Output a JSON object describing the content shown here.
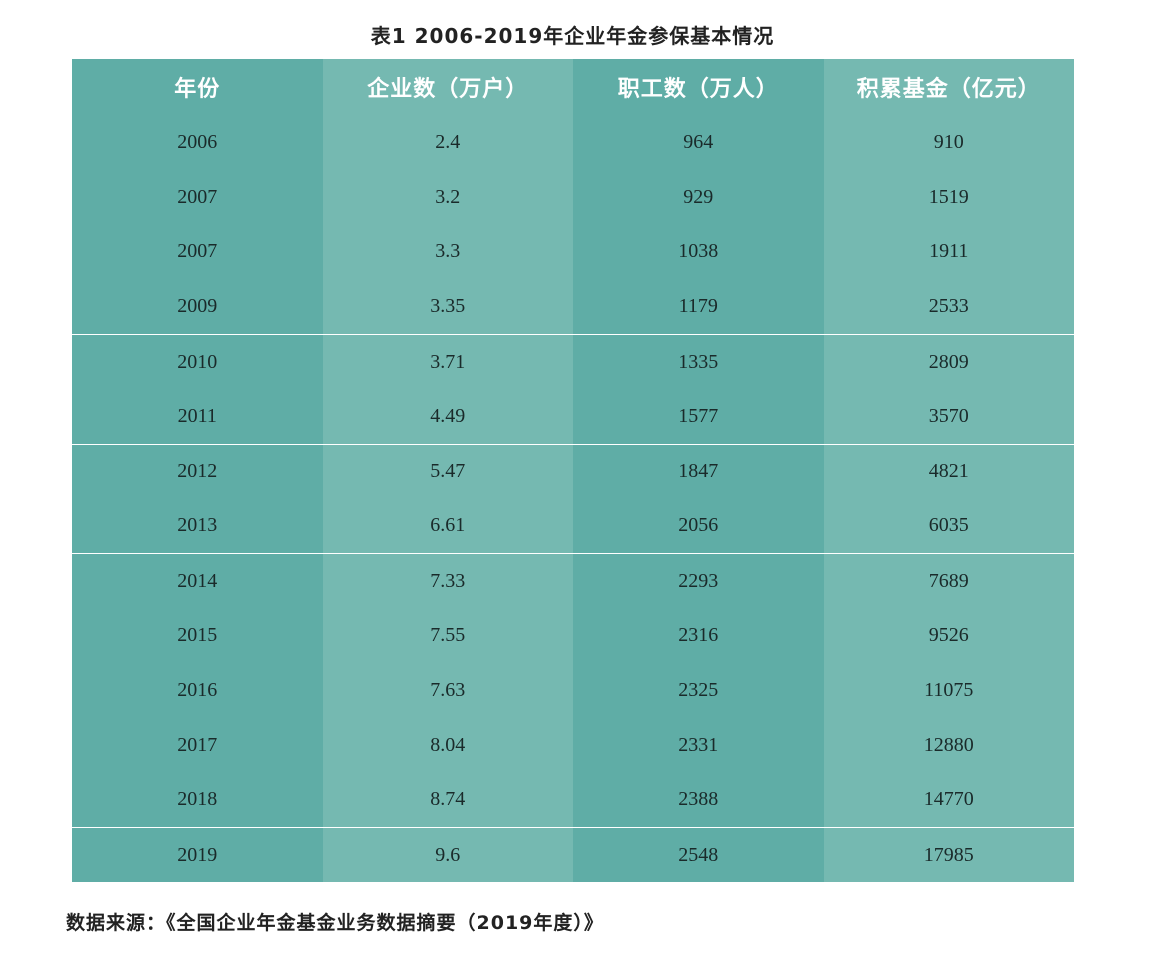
{
  "title": "表1 2006-2019年企业年金参保基本情况",
  "table": {
    "headers": [
      "年份",
      "企业数（万户）",
      "职工数（万人）",
      "积累基金（亿元）"
    ],
    "rows": [
      [
        "2006",
        "2.4",
        "964",
        "910"
      ],
      [
        "2007",
        "3.2",
        "929",
        "1519"
      ],
      [
        "2007",
        "3.3",
        "1038",
        "1911"
      ],
      [
        "2009",
        "3.35",
        "1179",
        "2533"
      ],
      [
        "2010",
        "3.71",
        "1335",
        "2809"
      ],
      [
        "2011",
        "4.49",
        "1577",
        "3570"
      ],
      [
        "2012",
        "5.47",
        "1847",
        "4821"
      ],
      [
        "2013",
        "6.61",
        "2056",
        "6035"
      ],
      [
        "2014",
        "7.33",
        "2293",
        "7689"
      ],
      [
        "2015",
        "7.55",
        "2316",
        "9526"
      ],
      [
        "2016",
        "7.63",
        "2325",
        "11075"
      ],
      [
        "2017",
        "8.04",
        "2331",
        "12880"
      ],
      [
        "2018",
        "8.74",
        "2388",
        "14770"
      ],
      [
        "2019",
        "9.6",
        "2548",
        "17985"
      ]
    ],
    "colors": {
      "column_dark": "#5fada6",
      "column_light": "#75b9b1",
      "header_text": "#ffffff",
      "cell_text": "#1a2a2a"
    }
  },
  "source": "数据来源：《全国企业年金基金业务数据摘要（2019年度）》"
}
